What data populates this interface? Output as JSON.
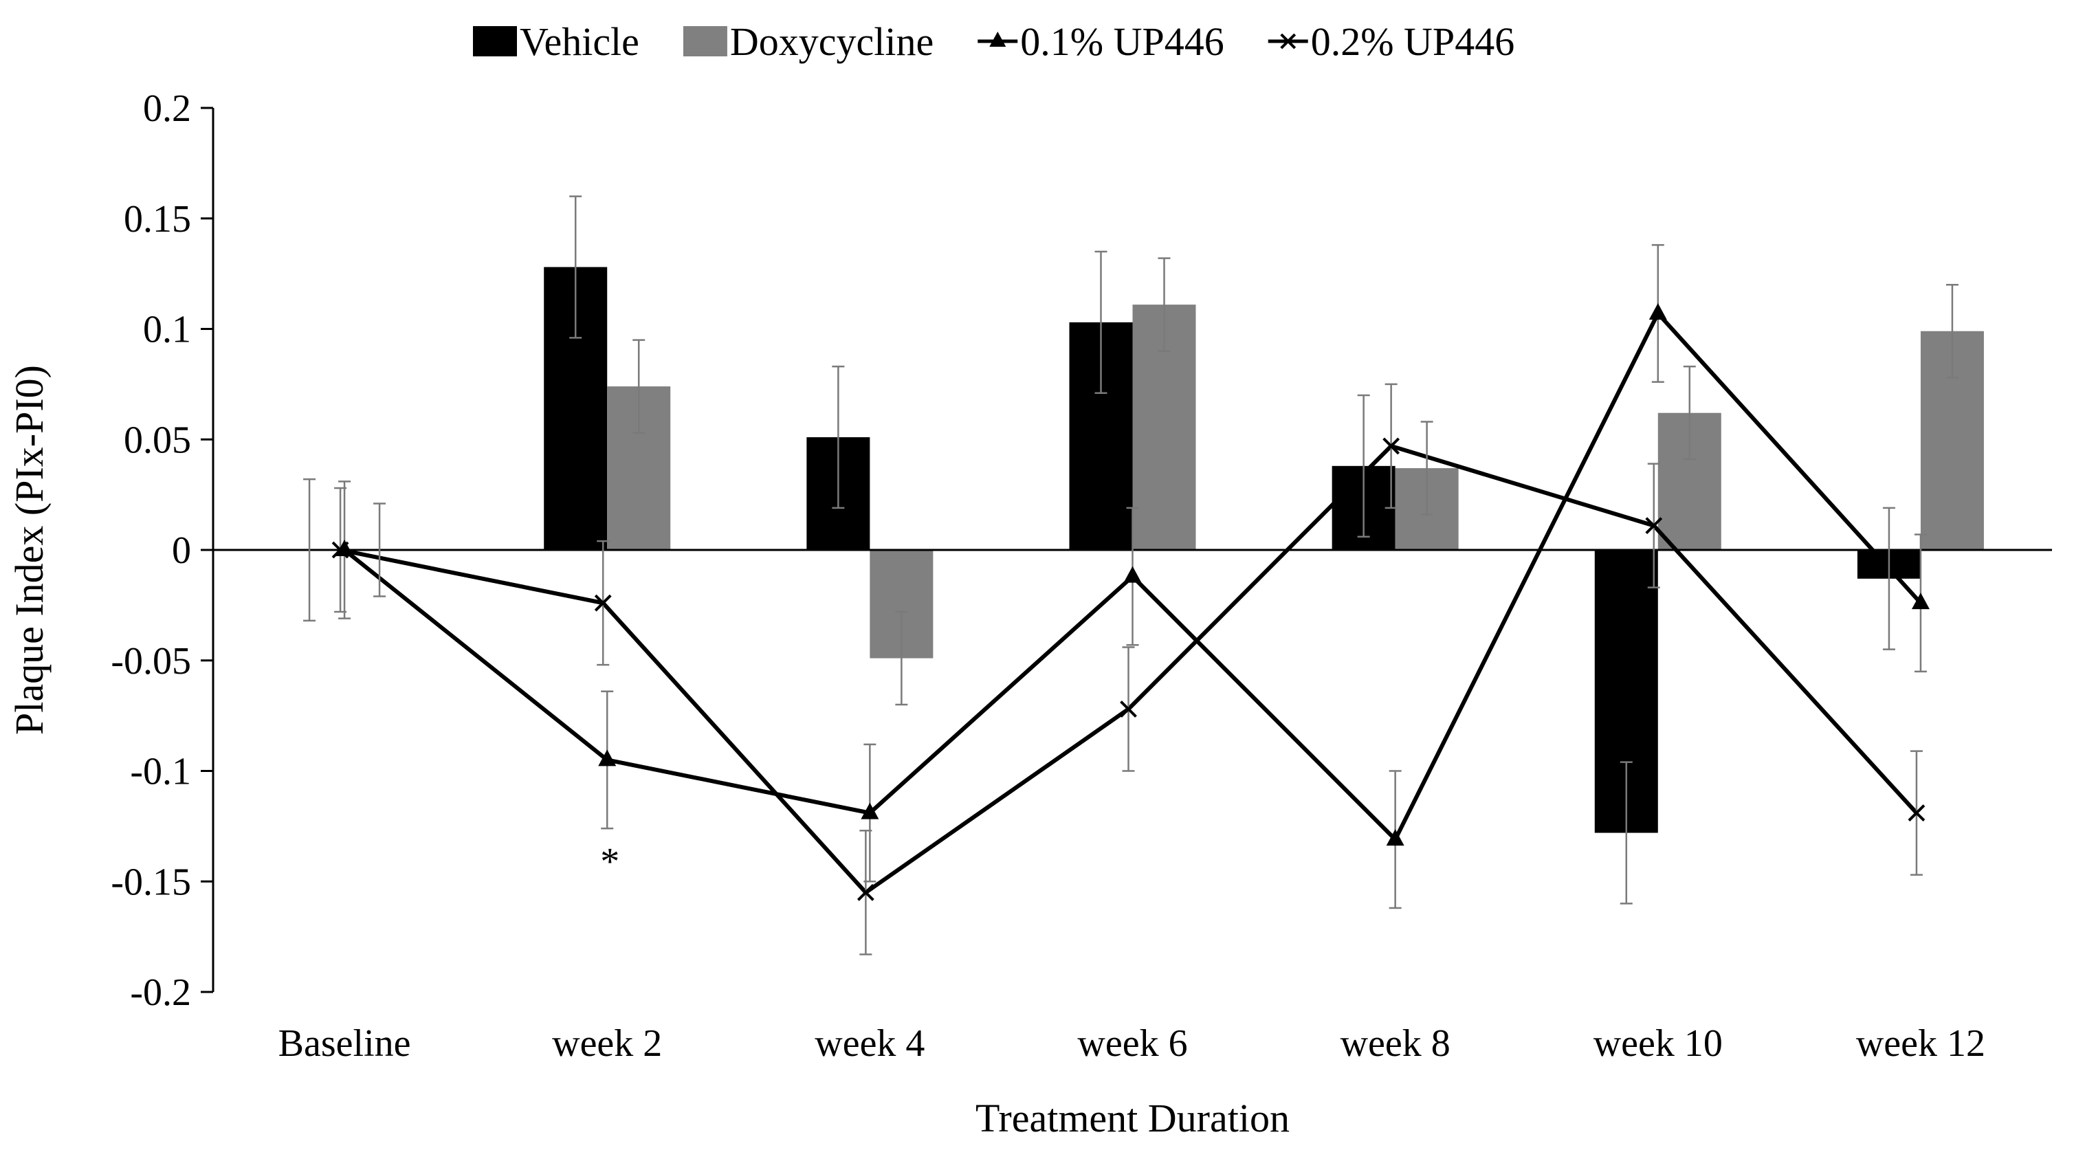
{
  "chart_data": {
    "type": "bar",
    "categories": [
      "Baseline",
      "week 2",
      "week 4",
      "week 6",
      "week 8",
      "week 10",
      "week 12"
    ],
    "xlabel": "Treatment Duration",
    "ylabel": "Plaque Index (PIx-PI0)",
    "ylim": [
      -0.2,
      0.2
    ],
    "yticks": [
      0.2,
      0.15,
      0.1,
      0.05,
      0,
      -0.05,
      -0.1,
      -0.15,
      -0.2
    ],
    "ytick_labels": [
      "0.2",
      "0.15",
      "0.1",
      "0.05",
      "0",
      "-0.05",
      "-0.1",
      "-0.15",
      "-0.2"
    ],
    "legend_position": "top-center",
    "grid": false,
    "series": [
      {
        "name": "Vehicle",
        "kind": "bar",
        "color": "#000000",
        "values": [
          0,
          0.128,
          0.051,
          0.103,
          0.038,
          -0.128,
          -0.013
        ],
        "errors": [
          0.032,
          0.032,
          0.032,
          0.032,
          0.032,
          0.032,
          0.032
        ]
      },
      {
        "name": "Doxycycline",
        "kind": "bar",
        "color": "#808080",
        "values": [
          0,
          0.074,
          -0.049,
          0.111,
          0.037,
          0.062,
          0.099
        ],
        "errors": [
          0.021,
          0.021,
          0.021,
          0.021,
          0.021,
          0.021,
          0.021
        ]
      },
      {
        "name": "0.1% UP446",
        "kind": "line",
        "marker": "triangle",
        "color": "#000000",
        "values": [
          0,
          -0.095,
          -0.119,
          -0.012,
          -0.131,
          0.107,
          -0.024
        ],
        "errors": [
          0.031,
          0.031,
          0.031,
          0.031,
          0.031,
          0.031,
          0.031
        ]
      },
      {
        "name": "0.2% UP446",
        "kind": "line",
        "marker": "x",
        "color": "#000000",
        "values": [
          0,
          -0.024,
          -0.155,
          -0.072,
          0.047,
          0.011,
          -0.119
        ],
        "errors": [
          0.028,
          0.028,
          0.028,
          0.028,
          0.028,
          0.028,
          0.028
        ]
      }
    ],
    "annotations": [
      {
        "text": "*",
        "category": "week 2",
        "value": -0.138
      }
    ]
  }
}
